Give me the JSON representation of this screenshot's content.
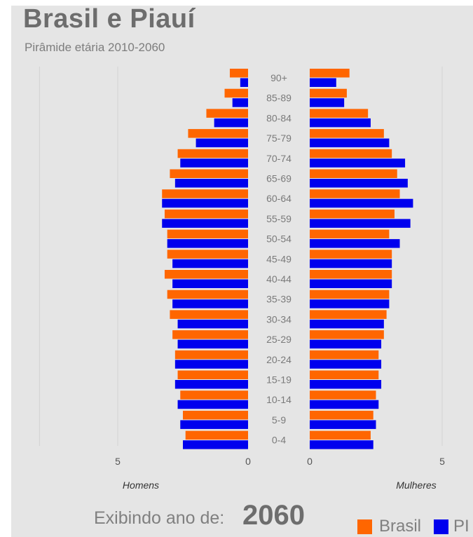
{
  "header": {
    "title": "Brasil e Piauí",
    "subtitle": "Pirâmide etária 2010-2060"
  },
  "footer": {
    "label": "Exibindo ano de:",
    "year": "2060"
  },
  "colors": {
    "brasil": "#ff6600",
    "pi": "#0000ee",
    "background": "#e5e5e5",
    "grid": "#d2d2d2"
  },
  "chart_data": {
    "type": "bar",
    "orientation": "horizontal-pyramid",
    "categories": [
      "90+",
      "85-89",
      "80-84",
      "75-79",
      "70-74",
      "65-69",
      "60-64",
      "55-59",
      "50-54",
      "45-49",
      "40-44",
      "35-39",
      "30-34",
      "25-29",
      "20-24",
      "15-19",
      "10-14",
      "5-9",
      "0-4"
    ],
    "left_panel": {
      "xlabel": "Homens",
      "ticks": [
        "5",
        "0"
      ],
      "xlim": [
        0,
        8
      ],
      "series": [
        {
          "name": "Brasil",
          "values": [
            0.7,
            0.9,
            1.6,
            2.3,
            2.7,
            3.0,
            3.3,
            3.2,
            3.1,
            3.1,
            3.2,
            3.1,
            3.0,
            2.9,
            2.8,
            2.7,
            2.6,
            2.5,
            2.4
          ]
        },
        {
          "name": "PI",
          "values": [
            0.3,
            0.6,
            1.3,
            2.0,
            2.6,
            2.8,
            3.3,
            3.3,
            3.1,
            2.9,
            2.9,
            2.9,
            2.7,
            2.7,
            2.8,
            2.8,
            2.7,
            2.6,
            2.5
          ]
        }
      ]
    },
    "right_panel": {
      "xlabel": "Mulheres",
      "ticks": [
        "0",
        "5"
      ],
      "xlim": [
        0,
        5
      ],
      "series": [
        {
          "name": "Brasil",
          "values": [
            1.5,
            1.4,
            2.2,
            2.8,
            3.1,
            3.3,
            3.4,
            3.2,
            3.0,
            3.1,
            3.1,
            3.0,
            2.9,
            2.8,
            2.6,
            2.6,
            2.5,
            2.4,
            2.3
          ]
        },
        {
          "name": "PI",
          "values": [
            1.0,
            1.3,
            2.3,
            3.0,
            3.6,
            3.7,
            3.9,
            3.8,
            3.4,
            3.1,
            3.1,
            3.0,
            2.8,
            2.7,
            2.7,
            2.7,
            2.6,
            2.5,
            2.4
          ]
        }
      ]
    },
    "legend": [
      "Brasil",
      "PI"
    ],
    "legend_position": "bottom-right",
    "grid": true
  }
}
